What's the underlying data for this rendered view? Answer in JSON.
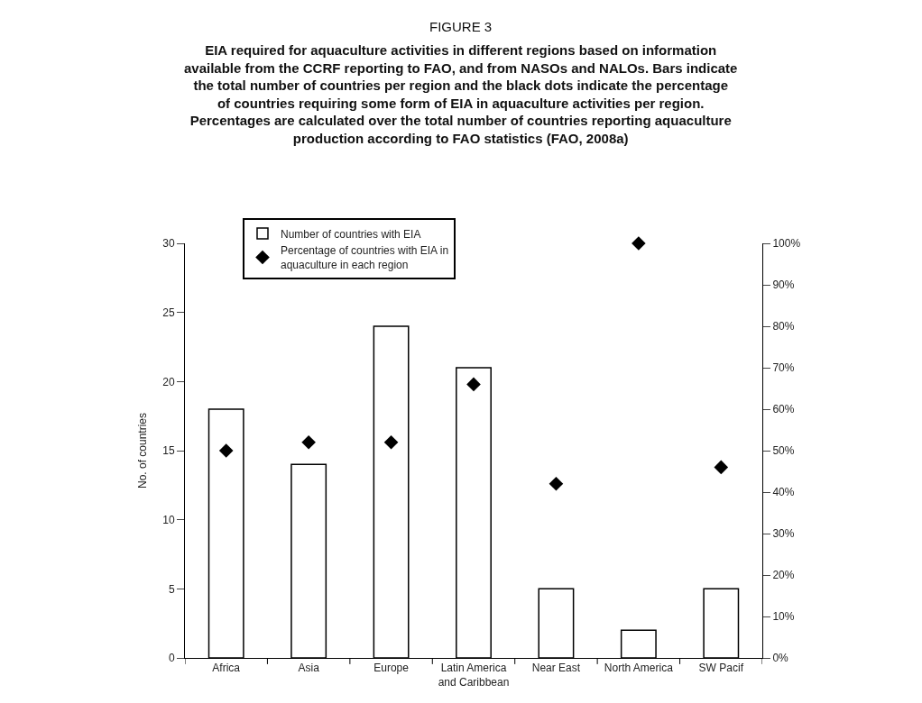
{
  "chart_data": {
    "type": "bar",
    "title": "FIGURE 3",
    "subtitle": "EIA required for aquaculture activities in different regions based on information available from the CCRF reporting to FAO, and from NASOs and NALOs. Bars indicate the total number of countries per region and the black dots indicate the percentage of countries requiring some form of EIA in aquaculture activities per region. Percentages are calculated over the total number of countries reporting aquaculture production according to FAO statistics (FAO, 2008a)",
    "categories": [
      "Africa",
      "Asia",
      "Europe",
      "Latin America and Caribbean",
      "Near East",
      "North America",
      "SW Pacif"
    ],
    "series": [
      {
        "name": "Number of countries with EIA",
        "color": "#ffffff",
        "values": [
          18,
          14,
          24,
          21,
          5,
          2,
          5
        ]
      },
      {
        "name": "Percentage of countries with EIA in aquaculture in each region",
        "type": "scatter",
        "axis": "y2",
        "color": "#000000",
        "marker": "diamond",
        "values": [
          50,
          52,
          52,
          66,
          42,
          100,
          46
        ]
      }
    ],
    "ylabel": "No. of countries",
    "ylim": [
      0,
      30
    ],
    "yticks": [
      0,
      5,
      10,
      15,
      20,
      25,
      30
    ],
    "y2lim": [
      0,
      100
    ],
    "y2ticks": [
      {
        "value": 0,
        "label": "0%"
      },
      {
        "value": 10,
        "label": "10%"
      },
      {
        "value": 20,
        "label": "20%"
      },
      {
        "value": 30,
        "label": "30%"
      },
      {
        "value": 40,
        "label": "40%"
      },
      {
        "value": 50,
        "label": "50%"
      },
      {
        "value": 60,
        "label": "60%"
      },
      {
        "value": 70,
        "label": "70%"
      },
      {
        "value": 80,
        "label": "80%"
      },
      {
        "value": 90,
        "label": "90%"
      },
      {
        "value": 100,
        "label": "100%"
      }
    ],
    "legend": "top left"
  }
}
